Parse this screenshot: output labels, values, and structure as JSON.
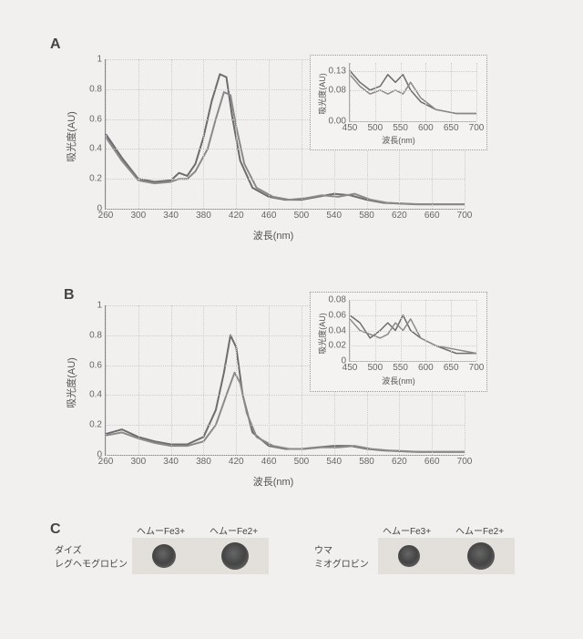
{
  "panelA": {
    "label": "A",
    "main": {
      "xlabel": "波長(nm)",
      "ylabel": "吸光度(AU)",
      "xlim": [
        260,
        700
      ],
      "ylim": [
        0,
        1
      ],
      "xticks": [
        260,
        300,
        340,
        380,
        420,
        460,
        500,
        540,
        580,
        620,
        660,
        700
      ],
      "yticks": [
        0,
        0.2,
        0.4,
        0.6,
        0.8,
        1
      ],
      "grid_color": "#d0cecb",
      "background_color": "#f2f0ee",
      "series": [
        {
          "name": "trace1",
          "color": "#6d6d6d",
          "width": 2,
          "data": [
            [
              260,
              0.5
            ],
            [
              280,
              0.34
            ],
            [
              300,
              0.2
            ],
            [
              320,
              0.18
            ],
            [
              340,
              0.19
            ],
            [
              350,
              0.24
            ],
            [
              360,
              0.22
            ],
            [
              370,
              0.3
            ],
            [
              380,
              0.48
            ],
            [
              390,
              0.72
            ],
            [
              400,
              0.9
            ],
            [
              408,
              0.88
            ],
            [
              415,
              0.62
            ],
            [
              425,
              0.32
            ],
            [
              440,
              0.14
            ],
            [
              460,
              0.08
            ],
            [
              480,
              0.06
            ],
            [
              500,
              0.06
            ],
            [
              520,
              0.08
            ],
            [
              540,
              0.1
            ],
            [
              560,
              0.09
            ],
            [
              580,
              0.06
            ],
            [
              600,
              0.04
            ],
            [
              640,
              0.03
            ],
            [
              700,
              0.03
            ]
          ]
        },
        {
          "name": "trace2",
          "color": "#8a8a8a",
          "width": 2,
          "data": [
            [
              260,
              0.48
            ],
            [
              280,
              0.32
            ],
            [
              300,
              0.19
            ],
            [
              320,
              0.17
            ],
            [
              340,
              0.18
            ],
            [
              350,
              0.2
            ],
            [
              360,
              0.2
            ],
            [
              370,
              0.25
            ],
            [
              385,
              0.4
            ],
            [
              395,
              0.6
            ],
            [
              405,
              0.78
            ],
            [
              413,
              0.76
            ],
            [
              420,
              0.55
            ],
            [
              430,
              0.3
            ],
            [
              445,
              0.14
            ],
            [
              465,
              0.08
            ],
            [
              485,
              0.06
            ],
            [
              505,
              0.07
            ],
            [
              525,
              0.09
            ],
            [
              545,
              0.08
            ],
            [
              565,
              0.1
            ],
            [
              585,
              0.06
            ],
            [
              605,
              0.04
            ],
            [
              645,
              0.03
            ],
            [
              700,
              0.03
            ]
          ]
        }
      ]
    },
    "inset": {
      "xlabel": "波長(nm)",
      "ylabel": "吸光度(AU)",
      "xlim": [
        450,
        700
      ],
      "ylim": [
        0,
        0.15
      ],
      "xticks": [
        450,
        500,
        550,
        600,
        650,
        700
      ],
      "yticks": [
        0.0,
        0.08,
        0.13
      ],
      "ytick_labels": [
        "0.00",
        "0.08",
        "0.13"
      ],
      "series": [
        {
          "name": "trace1",
          "color": "#6d6d6d",
          "width": 1.5,
          "data": [
            [
              450,
              0.13
            ],
            [
              470,
              0.1
            ],
            [
              490,
              0.08
            ],
            [
              510,
              0.09
            ],
            [
              525,
              0.12
            ],
            [
              540,
              0.1
            ],
            [
              555,
              0.12
            ],
            [
              570,
              0.08
            ],
            [
              590,
              0.05
            ],
            [
              620,
              0.03
            ],
            [
              660,
              0.02
            ],
            [
              700,
              0.02
            ]
          ]
        },
        {
          "name": "trace2",
          "color": "#8a8a8a",
          "width": 1.5,
          "data": [
            [
              450,
              0.12
            ],
            [
              470,
              0.09
            ],
            [
              490,
              0.07
            ],
            [
              510,
              0.08
            ],
            [
              525,
              0.07
            ],
            [
              540,
              0.08
            ],
            [
              555,
              0.07
            ],
            [
              570,
              0.1
            ],
            [
              590,
              0.06
            ],
            [
              620,
              0.03
            ],
            [
              660,
              0.02
            ],
            [
              700,
              0.02
            ]
          ]
        }
      ]
    }
  },
  "panelB": {
    "label": "B",
    "main": {
      "xlabel": "波長(nm)",
      "ylabel": "吸光度(AU)",
      "xlim": [
        260,
        700
      ],
      "ylim": [
        0,
        1
      ],
      "xticks": [
        260,
        300,
        340,
        380,
        420,
        460,
        500,
        540,
        580,
        620,
        660,
        700
      ],
      "yticks": [
        0,
        0.2,
        0.4,
        0.6,
        0.8,
        1
      ],
      "series": [
        {
          "name": "trace1",
          "color": "#6d6d6d",
          "width": 2,
          "data": [
            [
              260,
              0.14
            ],
            [
              280,
              0.17
            ],
            [
              300,
              0.12
            ],
            [
              320,
              0.09
            ],
            [
              340,
              0.07
            ],
            [
              360,
              0.07
            ],
            [
              380,
              0.12
            ],
            [
              395,
              0.3
            ],
            [
              405,
              0.55
            ],
            [
              413,
              0.8
            ],
            [
              420,
              0.72
            ],
            [
              428,
              0.4
            ],
            [
              440,
              0.15
            ],
            [
              460,
              0.06
            ],
            [
              480,
              0.04
            ],
            [
              500,
              0.04
            ],
            [
              520,
              0.05
            ],
            [
              540,
              0.06
            ],
            [
              560,
              0.06
            ],
            [
              580,
              0.04
            ],
            [
              600,
              0.03
            ],
            [
              640,
              0.02
            ],
            [
              700,
              0.02
            ]
          ]
        },
        {
          "name": "trace2",
          "color": "#8a8a8a",
          "width": 2,
          "data": [
            [
              260,
              0.13
            ],
            [
              280,
              0.15
            ],
            [
              300,
              0.11
            ],
            [
              320,
              0.08
            ],
            [
              340,
              0.06
            ],
            [
              360,
              0.06
            ],
            [
              380,
              0.09
            ],
            [
              395,
              0.2
            ],
            [
              408,
              0.4
            ],
            [
              418,
              0.55
            ],
            [
              425,
              0.48
            ],
            [
              433,
              0.28
            ],
            [
              445,
              0.12
            ],
            [
              465,
              0.06
            ],
            [
              485,
              0.04
            ],
            [
              505,
              0.04
            ],
            [
              525,
              0.05
            ],
            [
              545,
              0.05
            ],
            [
              565,
              0.06
            ],
            [
              585,
              0.04
            ],
            [
              605,
              0.03
            ],
            [
              645,
              0.02
            ],
            [
              700,
              0.02
            ]
          ]
        }
      ]
    },
    "inset": {
      "xlabel": "波長(nm)",
      "ylabel": "吸光度(AU)",
      "xlim": [
        450,
        700
      ],
      "ylim": [
        0,
        0.08
      ],
      "xticks": [
        450,
        500,
        550,
        600,
        650,
        700
      ],
      "yticks": [
        0,
        0.02,
        0.04,
        0.06,
        0.08
      ],
      "ytick_labels": [
        "0",
        "0.02",
        "0.04",
        "0.06",
        "0.08"
      ],
      "series": [
        {
          "name": "trace1",
          "color": "#6d6d6d",
          "width": 1.5,
          "data": [
            [
              450,
              0.06
            ],
            [
              470,
              0.05
            ],
            [
              490,
              0.03
            ],
            [
              510,
              0.04
            ],
            [
              525,
              0.05
            ],
            [
              540,
              0.04
            ],
            [
              555,
              0.06
            ],
            [
              570,
              0.04
            ],
            [
              590,
              0.03
            ],
            [
              620,
              0.02
            ],
            [
              660,
              0.01
            ],
            [
              700,
              0.01
            ]
          ]
        },
        {
          "name": "trace2",
          "color": "#8a8a8a",
          "width": 1.5,
          "data": [
            [
              450,
              0.055
            ],
            [
              470,
              0.04
            ],
            [
              490,
              0.035
            ],
            [
              510,
              0.03
            ],
            [
              525,
              0.035
            ],
            [
              540,
              0.05
            ],
            [
              555,
              0.04
            ],
            [
              570,
              0.055
            ],
            [
              590,
              0.03
            ],
            [
              620,
              0.02
            ],
            [
              660,
              0.015
            ],
            [
              700,
              0.01
            ]
          ]
        }
      ]
    }
  },
  "panelC": {
    "label": "C",
    "columns": [
      "ヘムーFe3+",
      "ヘムーFe2+"
    ],
    "groups": [
      {
        "label1": "ダイズ",
        "label2": "レグヘモグロビン",
        "dot_colors": [
          "#5a514a",
          "#4a423c"
        ],
        "box_color": "#e3e0dc"
      },
      {
        "label1": "ウマ",
        "label2": "ミオグロビン",
        "dot_colors": [
          "#5c534c",
          "#48403a"
        ],
        "box_color": "#e3e0dc"
      }
    ]
  }
}
